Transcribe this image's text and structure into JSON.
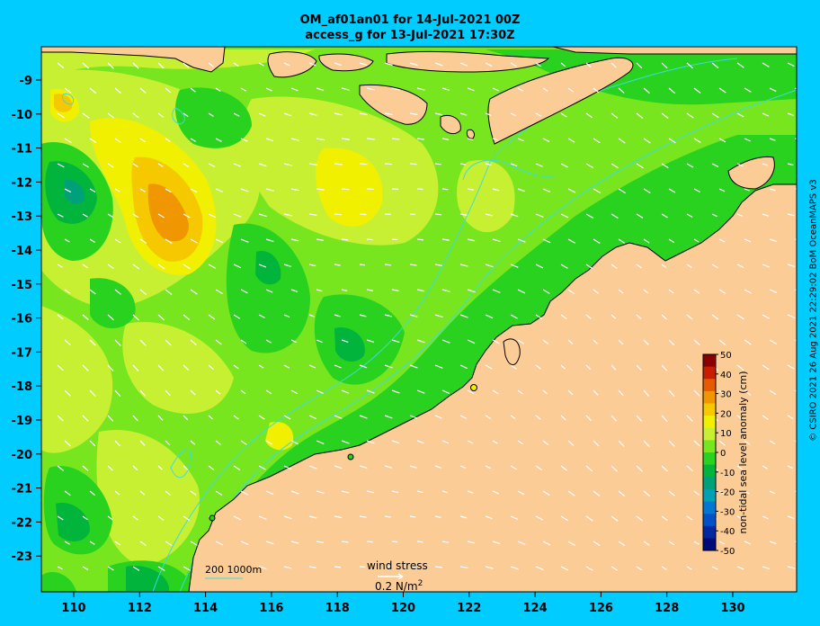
{
  "title": {
    "line1": "OM_af01an01 for 14-Jul-2021 00Z",
    "line2": "access_g for 13-Jul-2021 17:30Z"
  },
  "axes": {
    "x_ticks": [
      "110",
      "112",
      "114",
      "116",
      "118",
      "120",
      "122",
      "124",
      "126",
      "128",
      "130"
    ],
    "y_ticks": [
      "-9",
      "-10",
      "-11",
      "-12",
      "-13",
      "-14",
      "-15",
      "-16",
      "-17",
      "-18",
      "-19",
      "-20",
      "-21",
      "-22",
      "-23"
    ]
  },
  "colorbar": {
    "label": "non-tidal sea level anomaly (cm)",
    "ticks": [
      "50",
      "40",
      "30",
      "20",
      "10",
      "0",
      "-10",
      "-20",
      "-30",
      "-40",
      "-50"
    ],
    "colors": [
      "#8a0000",
      "#c81e00",
      "#e65a00",
      "#f09600",
      "#f5c800",
      "#f0f000",
      "#c8f032",
      "#78e61e",
      "#28d21e",
      "#00b43c",
      "#00a078",
      "#00a0b4",
      "#0078d2",
      "#0050c8",
      "#0028a0",
      "#000a78"
    ]
  },
  "legend": {
    "wind_label": "wind stress",
    "wind_unit": "0.2 N/m",
    "wind_unit_sup": "2",
    "depth_label": "200  1000m"
  },
  "credit": "© CSIRO 2021  26 Aug 2021 22:29:02 BoM OceanMAPS v3"
}
